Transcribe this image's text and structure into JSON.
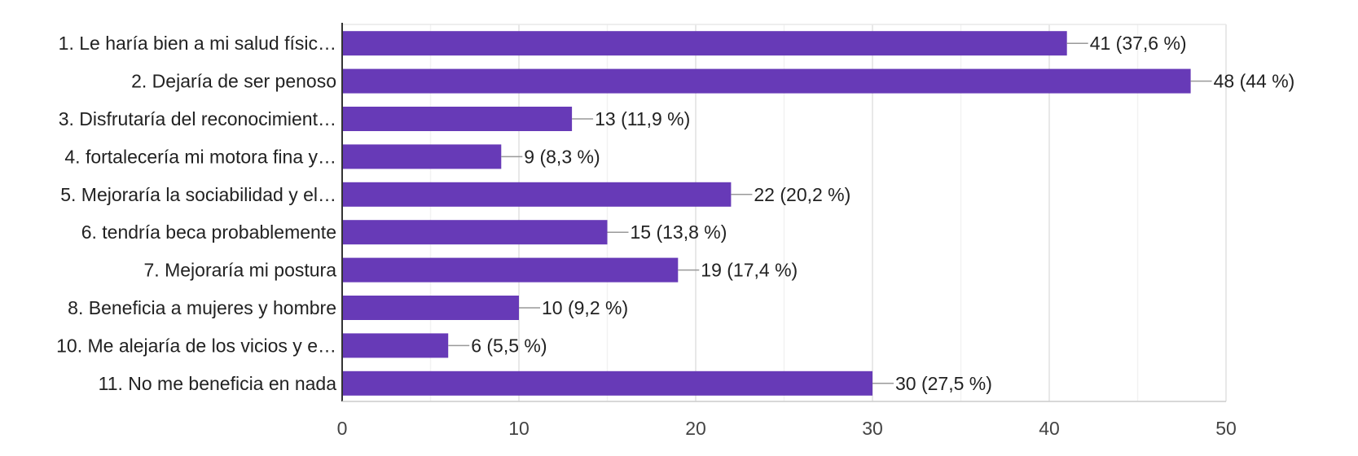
{
  "chart_data": {
    "type": "bar",
    "orientation": "horizontal",
    "title": "",
    "xlabel": "",
    "ylabel": "",
    "xlim": [
      0,
      50
    ],
    "xticks": [
      0,
      10,
      20,
      30,
      40,
      50
    ],
    "grid": true,
    "bar_color": "#673ab7",
    "categories": [
      "1. Le haría bien a mi salud físic…",
      "2. Dejaría de ser penoso",
      "3. Disfrutaría del reconocimient…",
      "4. fortalecería mi motora fina y…",
      "5. Mejoraría la sociabilidad y el…",
      "6. tendría beca probablemente",
      "7. Mejoraría mi postura",
      "8. Beneficia a mujeres y hombre",
      "10. Me alejaría de los vicios y e…",
      "11. No me beneficia en nada"
    ],
    "values": [
      41,
      48,
      13,
      9,
      22,
      15,
      19,
      10,
      6,
      30
    ],
    "value_labels": [
      "41 (37,6 %)",
      "48 (44 %)",
      "13 (11,9 %)",
      "9 (8,3 %)",
      "22 (20,2 %)",
      "15 (13,8 %)",
      "19 (17,4 %)",
      "10 (9,2 %)",
      "6 (5,5 %)",
      "30 (27,5 %)"
    ]
  }
}
